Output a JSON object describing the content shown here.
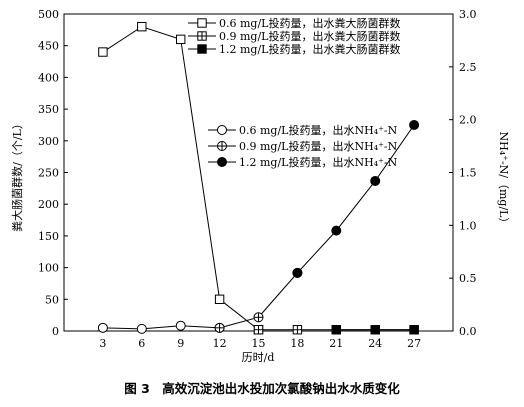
{
  "chart_data": {
    "type": "line",
    "caption": "图 3　高效沉淀池出水投加次氯酸钠出水水质变化",
    "xlabel": "历时/d",
    "ylabel_left": "粪大肠菌群数/（个/L）",
    "ylabel_right": "NH₄⁺-N/（mg/L）",
    "x": [
      3,
      6,
      9,
      12,
      15,
      18,
      21,
      24,
      27
    ],
    "x_ticks": [
      "3",
      "6",
      "9",
      "12",
      "15",
      "18",
      "21",
      "24",
      "27"
    ],
    "xlim": [
      0,
      30
    ],
    "ylim_left": [
      0,
      500
    ],
    "ylim_right": [
      0,
      3.0
    ],
    "y_ticks_left": [
      "0",
      "50",
      "100",
      "150",
      "200",
      "250",
      "300",
      "350",
      "400",
      "450",
      "500"
    ],
    "y_ticks_right": [
      "0.0",
      "0.5",
      "1.0",
      "1.5",
      "2.0",
      "2.5",
      "3.0"
    ],
    "series": [
      {
        "name": "0.6 mg/L投药量，出水粪大肠菌群数",
        "axis": "left",
        "marker": "square-open",
        "x": [
          3,
          6,
          9,
          12,
          15
        ],
        "values": [
          440,
          480,
          460,
          50,
          2
        ]
      },
      {
        "name": "0.9 mg/L投药量，出水粪大肠菌群数",
        "axis": "left",
        "marker": "square-cross",
        "x": [
          15,
          18,
          21,
          24,
          27
        ],
        "values": [
          2,
          2,
          2,
          2,
          2
        ]
      },
      {
        "name": "1.2 mg/L投药量，出水粪大肠菌群数",
        "axis": "left",
        "marker": "square-filled",
        "x": [
          21,
          24,
          27
        ],
        "values": [
          2,
          2,
          2
        ]
      },
      {
        "name": "0.6 mg/L投药量，出水NH₄⁺-N",
        "axis": "right",
        "marker": "circle-open",
        "x": [
          3,
          6,
          9,
          12
        ],
        "values": [
          0.03,
          0.02,
          0.05,
          0.03
        ]
      },
      {
        "name": "0.9 mg/L投药量，出水NH₄⁺-N",
        "axis": "right",
        "marker": "circle-cross",
        "x": [
          12,
          15,
          18
        ],
        "values": [
          0.03,
          0.13,
          0.55
        ]
      },
      {
        "name": "1.2 mg/L投药量，出水NH₄⁺-N",
        "axis": "right",
        "marker": "circle-filled",
        "x": [
          18,
          21,
          24,
          27
        ],
        "values": [
          0.55,
          0.95,
          1.42,
          1.95
        ]
      }
    ]
  }
}
